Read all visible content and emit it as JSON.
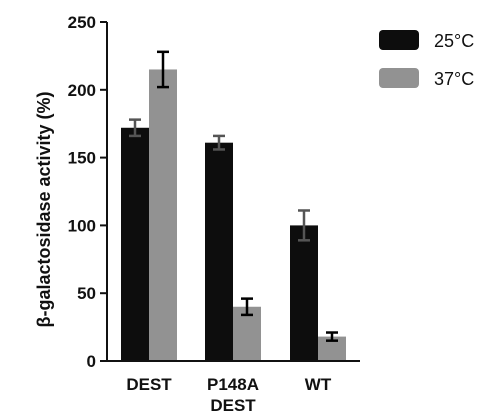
{
  "chart_data": {
    "type": "bar",
    "categories": [
      [
        "DEST"
      ],
      [
        "P148A",
        "DEST"
      ],
      [
        "WT"
      ]
    ],
    "series": [
      {
        "name": "25°C",
        "color": "#0d0d0d",
        "values": [
          172,
          161,
          100
        ],
        "errors": [
          6,
          5,
          11
        ],
        "error_color": "#555555"
      },
      {
        "name": "37°C",
        "color": "#929292",
        "values": [
          215,
          40,
          18
        ],
        "errors": [
          13,
          6,
          3
        ],
        "error_color": "#000000"
      }
    ],
    "ylabel": "β-galactosidase activity (%)",
    "yticks": [
      0,
      50,
      100,
      150,
      200,
      250
    ],
    "ylim": [
      0,
      250
    ],
    "grid": false,
    "legend_position": "top-right"
  }
}
